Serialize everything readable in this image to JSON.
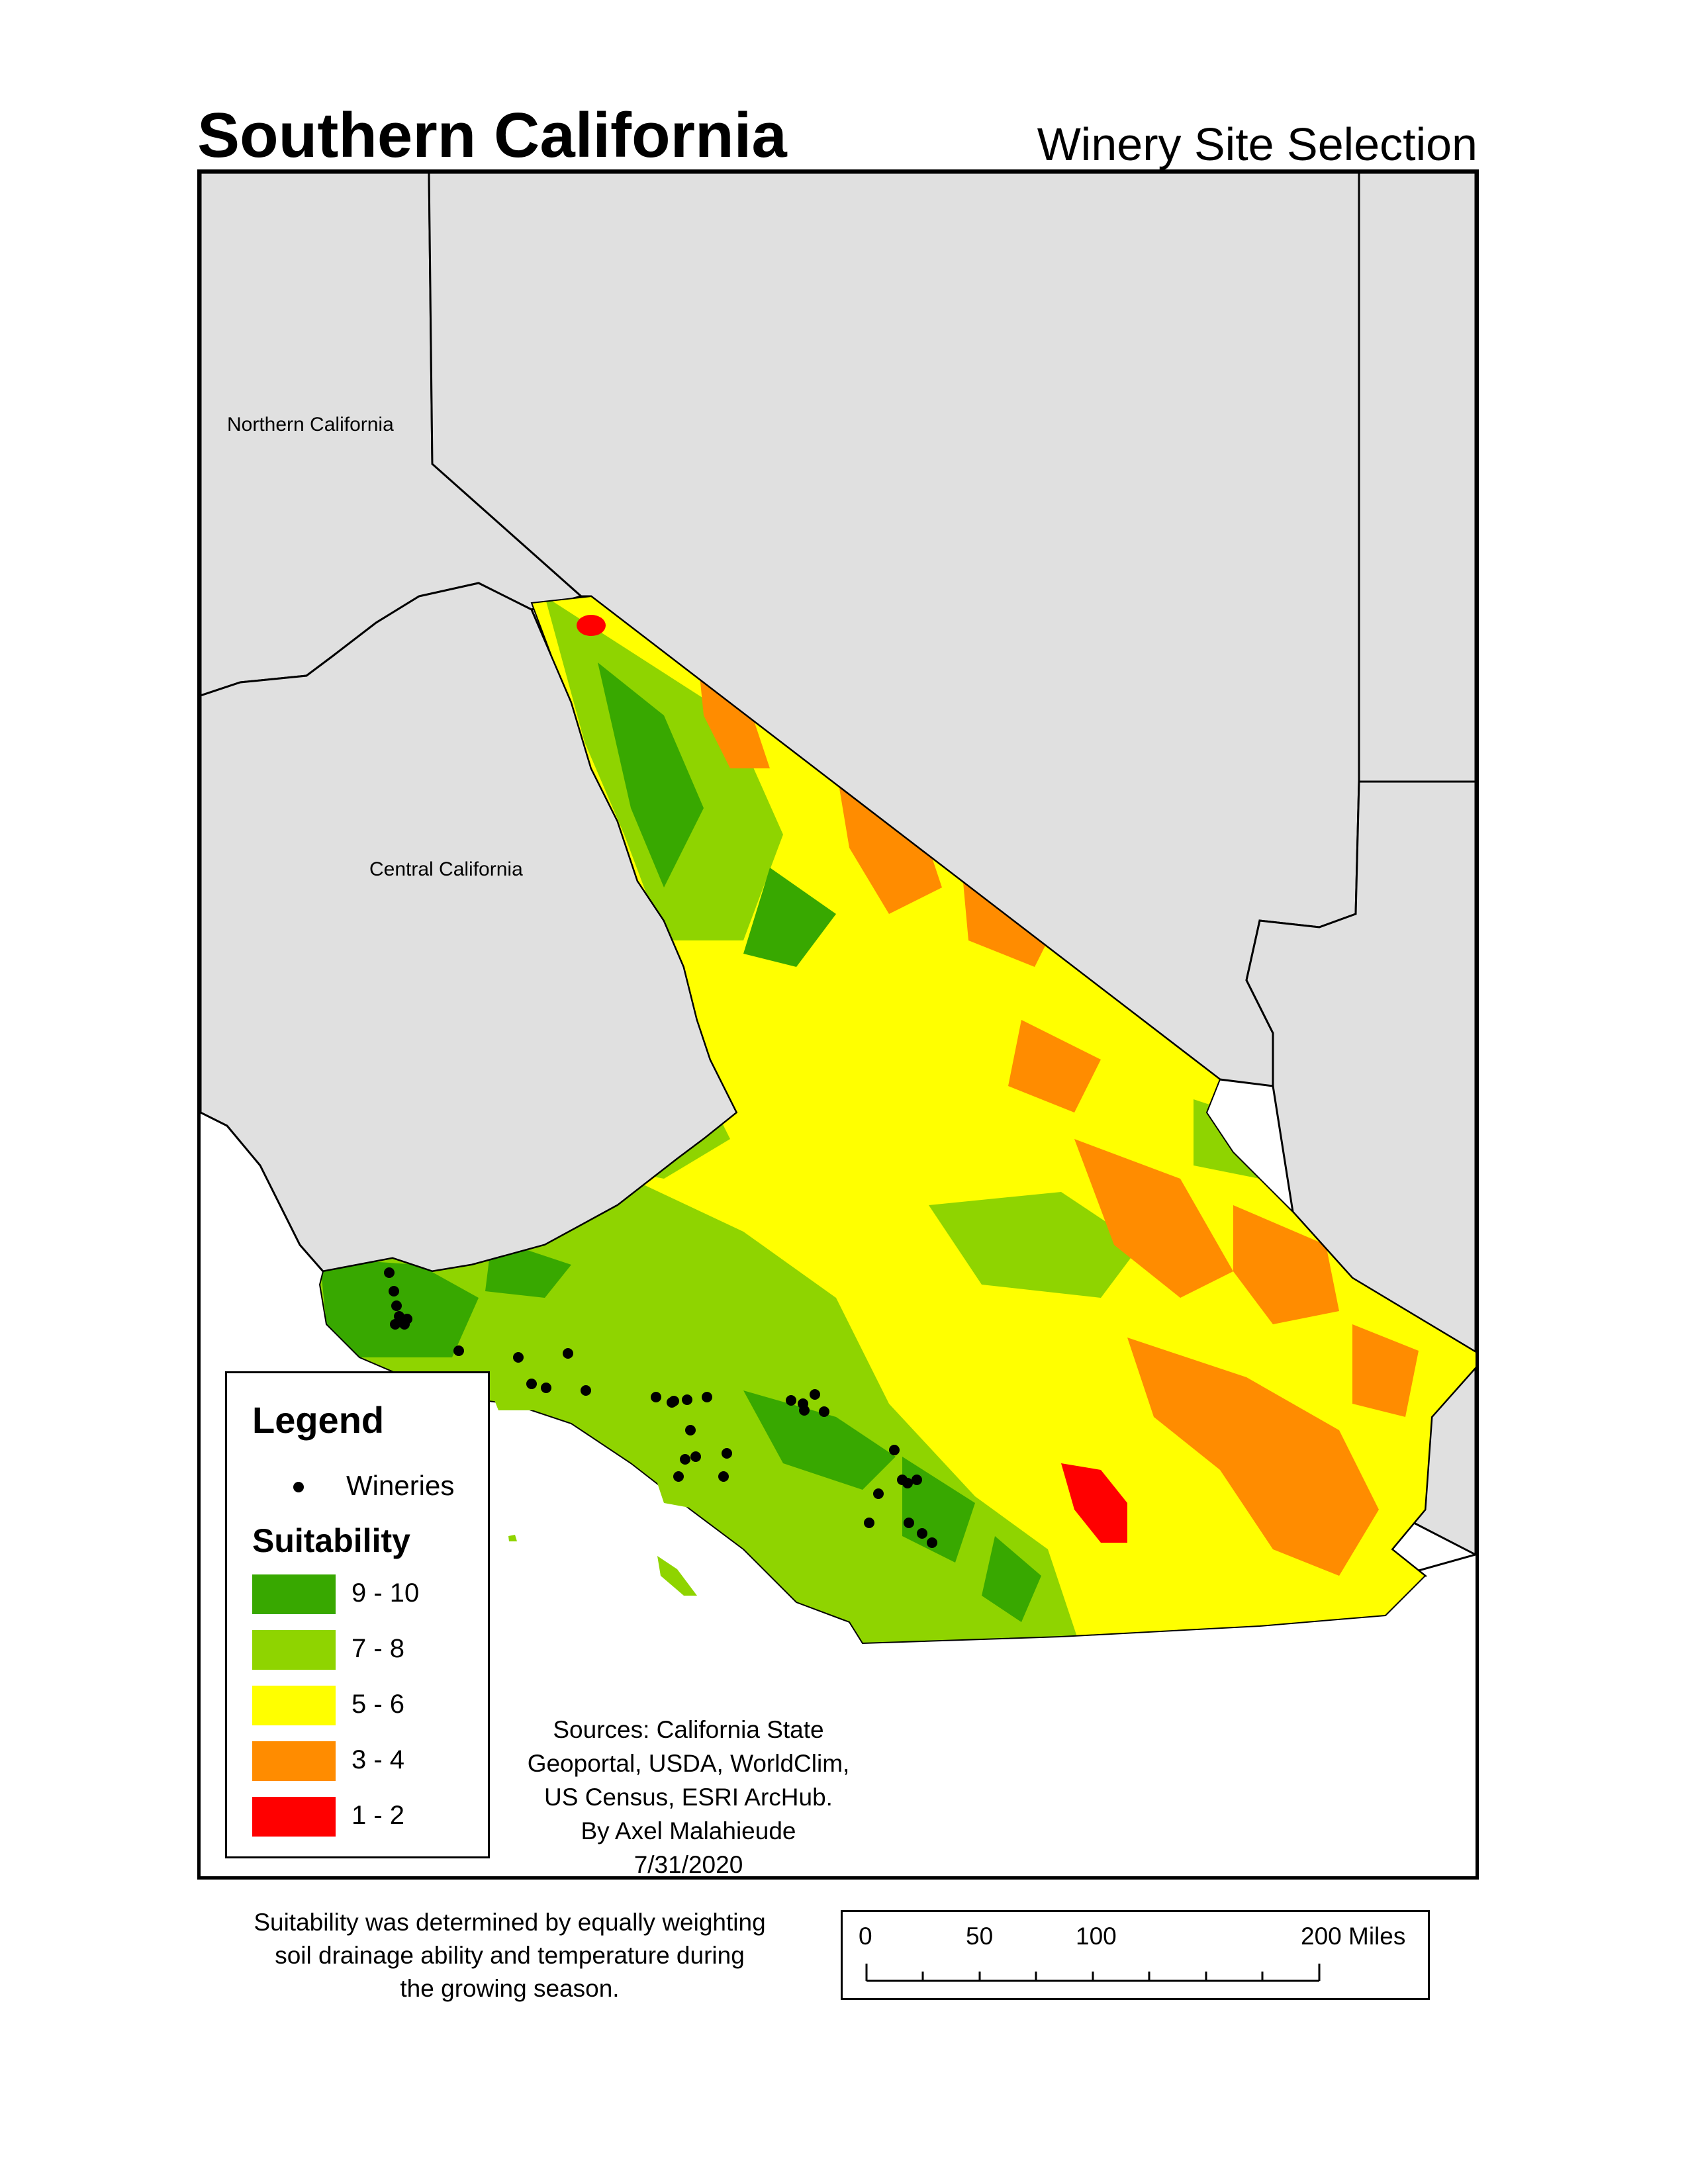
{
  "header": {
    "title": "Southern California",
    "subtitle": "Winery Site Selection"
  },
  "map": {
    "region_labels": {
      "northern": "Northern California",
      "central": "Central California"
    },
    "colors": {
      "outside_region": "#e0e0e0",
      "boundary": "#000000",
      "suitability_9_10": "#38a800",
      "suitability_7_8": "#8fd400",
      "suitability_5_6": "#ffff00",
      "suitability_3_4": "#ff8c00",
      "suitability_1_2": "#ff0000",
      "winery": "#000000"
    },
    "winery_count": 38
  },
  "legend": {
    "title": "Legend",
    "wineries_label": "Wineries",
    "suitability_title": "Suitability",
    "classes": [
      {
        "label": "9 - 10",
        "color": "#38a800"
      },
      {
        "label": "7 - 8",
        "color": "#8fd400"
      },
      {
        "label": "5 - 6",
        "color": "#ffff00"
      },
      {
        "label": "3 - 4",
        "color": "#ff8c00"
      },
      {
        "label": "1 - 2",
        "color": "#ff0000"
      }
    ]
  },
  "sources": {
    "line1": "Sources: California State",
    "line2": "Geoportal, USDA, WorldClim,",
    "line3": "US Census, ESRI ArcHub.",
    "line4": "By Axel Malahieude",
    "line5": "7/31/2020"
  },
  "footnote": {
    "line1": "Suitability was determined by equally weighting",
    "line2": "soil drainage ability and temperature during",
    "line3": "the growing season."
  },
  "scale_bar": {
    "labels": [
      "0",
      "50",
      "100",
      "200 Miles"
    ]
  }
}
